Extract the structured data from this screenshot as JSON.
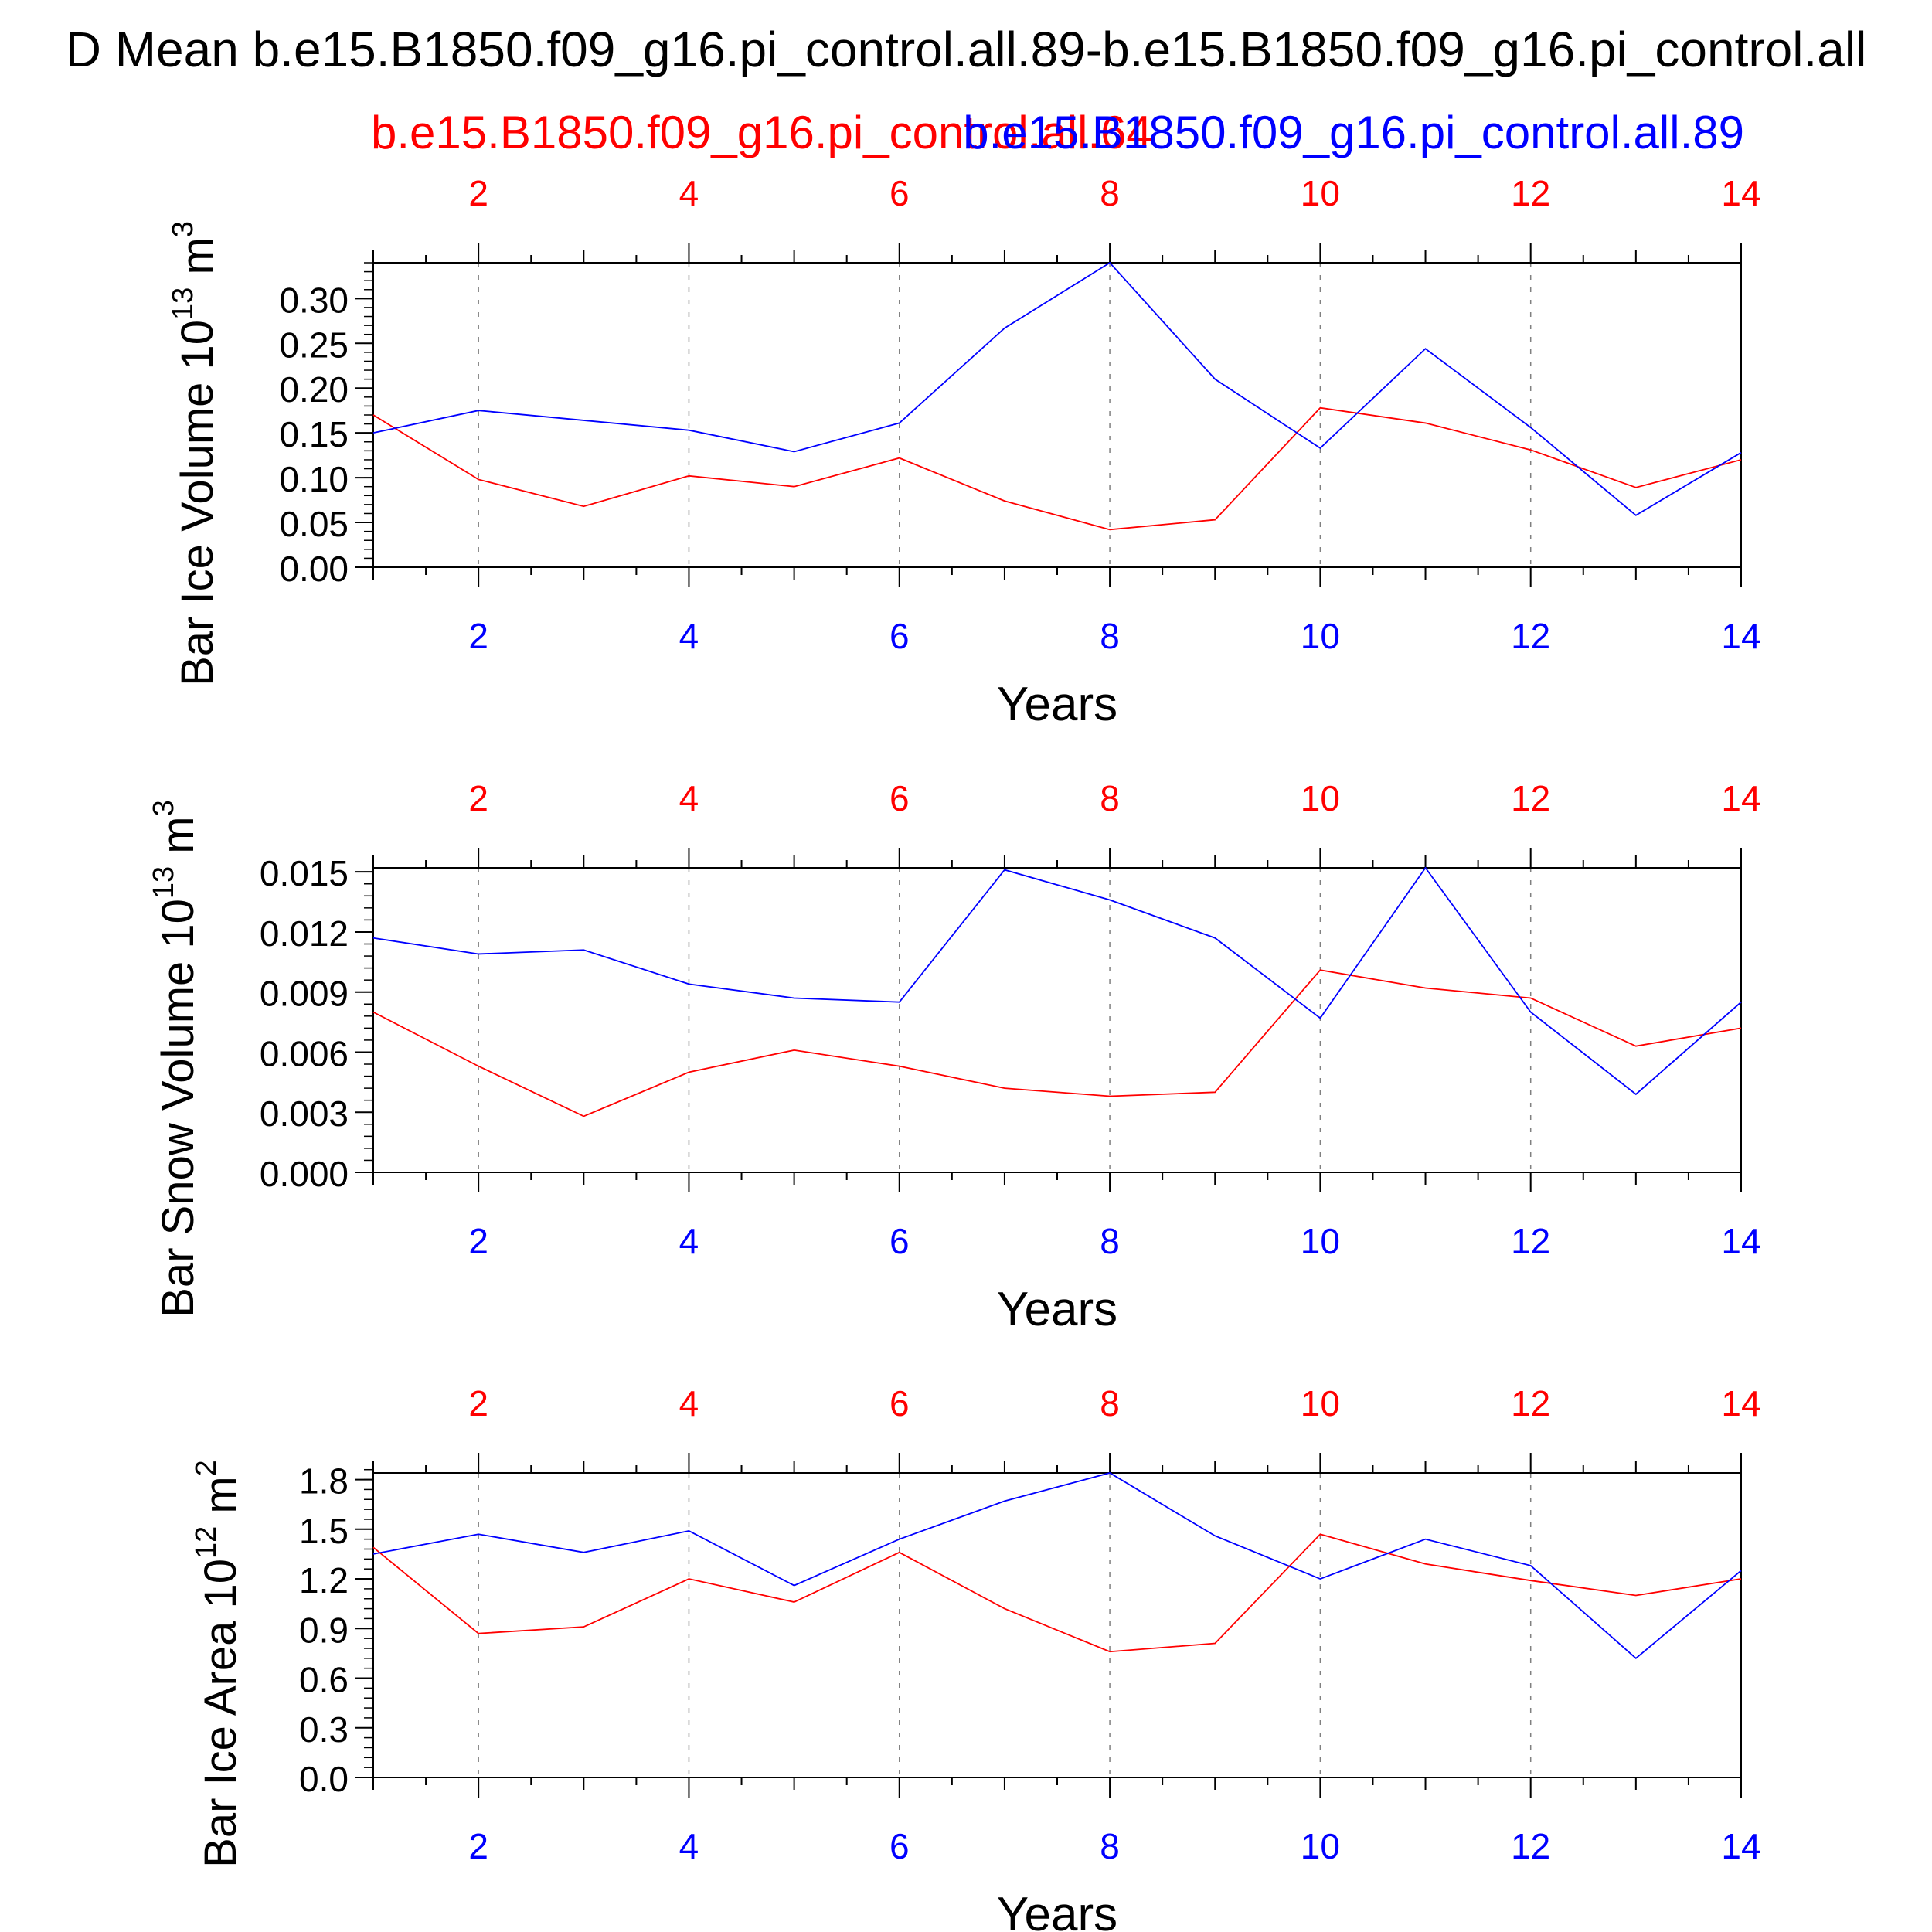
{
  "title": "D Mean b.e15.B1850.f09_g16.pi_control.all.89-b.e15.B1850.f09_g16.pi_control.all",
  "legend": {
    "red_label": "b.e15.B1850.f09_g16.pi_control.all.64",
    "blue_label": "b.e15.B1850.f09_g16.pi_control.all.89"
  },
  "colors": {
    "red": "#ff0000",
    "blue": "#0000ff",
    "axis": "#000000",
    "grid": "#808080"
  },
  "chart_data": [
    {
      "type": "line",
      "ylabel_main": "Bar Ice Volume 10",
      "ylabel_exp": "13",
      "ylabel_unit": " m",
      "ylabel_unit_exp": "3",
      "xlabel": "Years",
      "xlim": [
        1,
        14
      ],
      "ylim": [
        0,
        0.34
      ],
      "yticks": [
        0,
        0.05,
        0.1,
        0.15,
        0.2,
        0.25,
        0.3
      ],
      "ytick_labels": [
        "0.00",
        "0.05",
        "0.10",
        "0.15",
        "0.20",
        "0.25",
        "0.30"
      ],
      "yminor_step": 0.01,
      "xticks": [
        2,
        4,
        6,
        8,
        10,
        12,
        14
      ],
      "xtick_labels": [
        "2",
        "4",
        "6",
        "8",
        "10",
        "12",
        "14"
      ],
      "x": [
        1,
        2,
        3,
        4,
        5,
        6,
        7,
        8,
        9,
        10,
        11,
        12,
        13,
        14
      ],
      "series": [
        {
          "color": "red",
          "values": [
            0.17,
            0.098,
            0.068,
            0.102,
            0.09,
            0.122,
            0.074,
            0.042,
            0.053,
            0.178,
            0.161,
            0.131,
            0.089,
            0.12
          ]
        },
        {
          "color": "blue",
          "values": [
            0.15,
            0.175,
            0.164,
            0.153,
            0.129,
            0.161,
            0.267,
            0.34,
            0.21,
            0.133,
            0.244,
            0.156,
            0.058,
            0.128
          ]
        }
      ]
    },
    {
      "type": "line",
      "ylabel_main": "Bar Snow Volume 10",
      "ylabel_exp": "13",
      "ylabel_unit": " m",
      "ylabel_unit_exp": "3",
      "xlabel": "Years",
      "xlim": [
        1,
        14
      ],
      "ylim": [
        0,
        0.0152
      ],
      "yticks": [
        0,
        0.003,
        0.006,
        0.009,
        0.012,
        0.015
      ],
      "ytick_labels": [
        "0.000",
        "0.003",
        "0.006",
        "0.009",
        "0.012",
        "0.015"
      ],
      "yminor_step": 0.0006,
      "xticks": [
        2,
        4,
        6,
        8,
        10,
        12,
        14
      ],
      "xtick_labels": [
        "2",
        "4",
        "6",
        "8",
        "10",
        "12",
        "14"
      ],
      "x": [
        1,
        2,
        3,
        4,
        5,
        6,
        7,
        8,
        9,
        10,
        11,
        12,
        13,
        14
      ],
      "series": [
        {
          "color": "red",
          "values": [
            0.008,
            0.0053,
            0.0028,
            0.005,
            0.0061,
            0.0053,
            0.0042,
            0.0038,
            0.004,
            0.0101,
            0.0092,
            0.0087,
            0.0063,
            0.0072
          ]
        },
        {
          "color": "blue",
          "values": [
            0.0117,
            0.0109,
            0.0111,
            0.0094,
            0.0087,
            0.0085,
            0.0151,
            0.0136,
            0.0117,
            0.0077,
            0.0152,
            0.008,
            0.0039,
            0.0085
          ]
        }
      ]
    },
    {
      "type": "line",
      "ylabel_main": "Bar Ice Area 10",
      "ylabel_exp": "12",
      "ylabel_unit": " m",
      "ylabel_unit_exp": "2",
      "xlabel": "Years",
      "xlim": [
        1,
        14
      ],
      "ylim": [
        0,
        1.84
      ],
      "yticks": [
        0,
        0.3,
        0.6,
        0.9,
        1.2,
        1.5,
        1.8
      ],
      "ytick_labels": [
        "0.0",
        "0.3",
        "0.6",
        "0.9",
        "1.2",
        "1.5",
        "1.8"
      ],
      "yminor_step": 0.06,
      "xticks": [
        2,
        4,
        6,
        8,
        10,
        12,
        14
      ],
      "xtick_labels": [
        "2",
        "4",
        "6",
        "8",
        "10",
        "12",
        "14"
      ],
      "x": [
        1,
        2,
        3,
        4,
        5,
        6,
        7,
        8,
        9,
        10,
        11,
        12,
        13,
        14
      ],
      "series": [
        {
          "color": "red",
          "values": [
            1.39,
            0.87,
            0.91,
            1.2,
            1.06,
            1.36,
            1.02,
            0.76,
            0.81,
            1.47,
            1.29,
            1.19,
            1.1,
            1.2
          ]
        },
        {
          "color": "blue",
          "values": [
            1.35,
            1.47,
            1.36,
            1.49,
            1.16,
            1.44,
            1.67,
            1.84,
            1.46,
            1.2,
            1.44,
            1.28,
            0.72,
            1.25
          ]
        }
      ]
    }
  ]
}
